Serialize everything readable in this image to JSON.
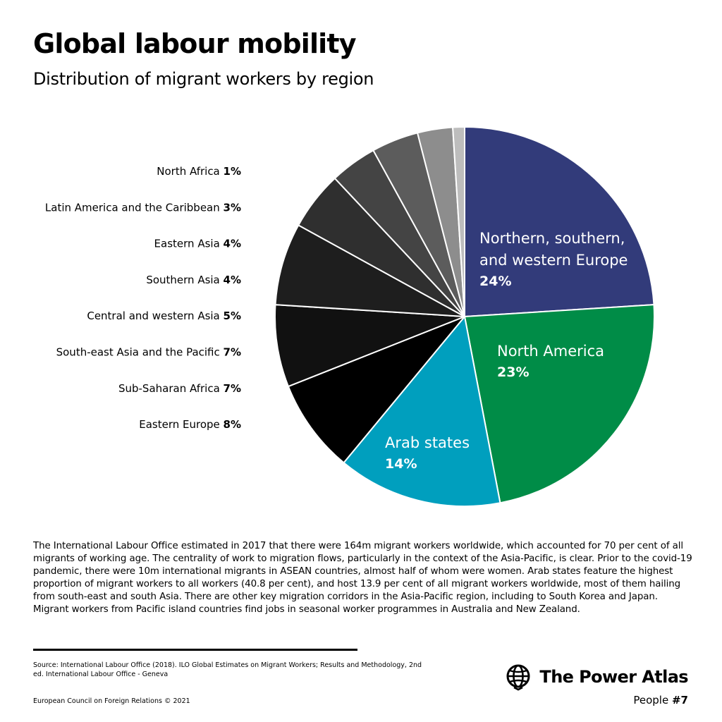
{
  "chart_data": {
    "type": "pie",
    "title": "Global labour mobility",
    "subtitle": "Distribution of migrant workers by region",
    "slices": [
      {
        "name": "Northern, southern, and western Europe",
        "lines": [
          "Northern, southern,",
          "and western Europe"
        ],
        "value": 24,
        "label": "24%",
        "color": "#323b7a",
        "callout": "inside"
      },
      {
        "name": "North America",
        "lines": [
          "North America"
        ],
        "value": 23,
        "label": "23%",
        "color": "#008c47",
        "callout": "inside"
      },
      {
        "name": "Arab states",
        "lines": [
          "Arab states"
        ],
        "value": 14,
        "label": "14%",
        "color": "#009fbe",
        "callout": "inside"
      },
      {
        "name": "Eastern Europe",
        "value": 8,
        "label": "8%",
        "color": "#000000",
        "callout": "legend"
      },
      {
        "name": "Sub-Saharan Africa",
        "value": 7,
        "label": "7%",
        "color": "#111111",
        "callout": "legend"
      },
      {
        "name": "South-east Asia and the Pacific",
        "value": 7,
        "label": "7%",
        "color": "#1e1e1e",
        "callout": "legend"
      },
      {
        "name": "Central and western Asia",
        "value": 5,
        "label": "5%",
        "color": "#2f2f2f",
        "callout": "legend"
      },
      {
        "name": "Southern Asia",
        "value": 4,
        "label": "4%",
        "color": "#444444",
        "callout": "legend"
      },
      {
        "name": "Eastern Asia",
        "value": 4,
        "label": "4%",
        "color": "#5c5c5c",
        "callout": "legend"
      },
      {
        "name": "Latin America and the Caribbean",
        "value": 3,
        "label": "3%",
        "color": "#8d8d8d",
        "callout": "legend"
      },
      {
        "name": "North Africa",
        "value": 1,
        "label": "1%",
        "color": "#bdbdbd",
        "callout": "legend"
      }
    ],
    "start": "12 o'clock",
    "direction": "clockwise",
    "legend_placement": "left",
    "legend_order": "top-to-bottom reverse of slice order"
  },
  "body_text": "The International Labour Office estimated in 2017 that there were 164m migrant workers worldwide, which accounted for 70 per cent of all migrants of working age. The centrality of work to migration flows, particularly in the context of the Asia-Pacific, is clear. Prior to the covid-19 pandemic, there were 10m international migrants in ASEAN countries, almost half of whom were women. Arab states feature the highest proportion of migrant workers to all workers (40.8 per cent), and host 13.9 per cent of all migrant workers worldwide, most of them hailing from south-east and south Asia. There are other key migration corridors in the Asia-Pacific region, including to South Korea and Japan. Migrant workers from Pacific island countries find jobs in seasonal worker programmes in Australia and New Zealand.",
  "source": "Source: International Labour Office (2018). ILO Global Estimates on Migrant Workers; Results and Methodology, 2nd ed. International Labour Office - Geneva",
  "copyright": "European Council on Foreign Relations © 2021",
  "brand": {
    "name": "The Power Atlas",
    "series": "People",
    "number": "#7",
    "icon": "globe-icon"
  }
}
